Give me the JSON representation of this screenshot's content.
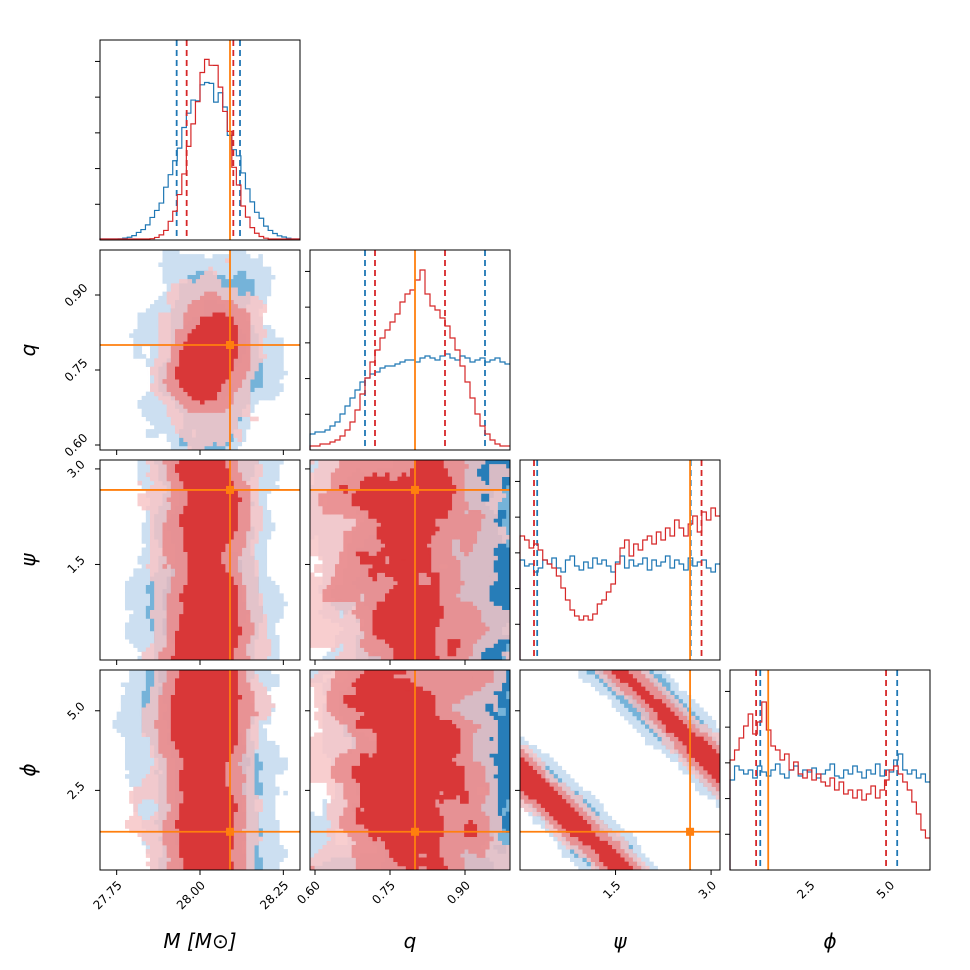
{
  "chart_data": {
    "type": "corner",
    "parameters": [
      {
        "key": "M",
        "label": "M [M⊙]",
        "range": [
          27.7,
          28.3
        ],
        "ticks": [
          27.75,
          28.0,
          28.25
        ],
        "tick_labels": [
          "27.75",
          "28.00",
          "28.25"
        ],
        "truth": 28.09
      },
      {
        "key": "q",
        "label": "q",
        "range": [
          0.59,
          0.99
        ],
        "ticks": [
          0.6,
          0.75,
          0.9
        ],
        "tick_labels": [
          "0.60",
          "0.75",
          "0.90"
        ],
        "truth": 0.8
      },
      {
        "key": "psi",
        "label": "ψ",
        "range": [
          0.0,
          3.14
        ],
        "ticks": [
          1.5,
          3.0
        ],
        "tick_labels": [
          "1.5",
          "3.0"
        ],
        "truth": 2.67
      },
      {
        "key": "phi",
        "label": "ϕ",
        "range": [
          0.0,
          6.28
        ],
        "ticks": [
          2.5,
          5.0
        ],
        "tick_labels": [
          "2.5",
          "5.0"
        ],
        "truth": 1.2
      }
    ],
    "series": [
      {
        "color": "#1f77b4",
        "quantiles": {
          "M": [
            27.93,
            28.12
          ],
          "q": [
            0.7,
            0.94
          ],
          "psi": [
            0.27,
            2.68
          ],
          "phi": [
            0.95,
            5.25
          ]
        },
        "marginals": {
          "M": {
            "center": 28.02,
            "sigma": 0.082,
            "peak": 0.78
          },
          "q": {
            "profile": [
              0.08,
              0.09,
              0.09,
              0.1,
              0.12,
              0.14,
              0.18,
              0.22,
              0.26,
              0.3,
              0.34,
              0.36,
              0.38,
              0.39,
              0.41,
              0.42,
              0.42,
              0.43,
              0.44,
              0.45,
              0.45,
              0.44,
              0.46,
              0.47,
              0.46,
              0.45,
              0.47,
              0.48,
              0.46,
              0.45,
              0.47,
              0.46,
              0.44,
              0.45,
              0.46,
              0.44,
              0.45,
              0.46,
              0.44,
              0.43
            ]
          },
          "psi": {
            "profile": [
              0.5,
              0.47,
              0.48,
              0.44,
              0.46,
              0.5,
              0.48,
              0.51,
              0.46,
              0.44,
              0.5,
              0.52,
              0.47,
              0.45,
              0.49,
              0.46,
              0.51,
              0.48,
              0.5,
              0.47,
              0.44,
              0.49,
              0.52,
              0.46,
              0.5,
              0.47,
              0.48,
              0.51,
              0.45,
              0.5,
              0.47,
              0.49,
              0.52,
              0.46,
              0.5,
              0.48,
              0.45,
              0.51,
              0.47,
              0.49,
              0.5,
              0.46,
              0.44,
              0.48
            ]
          },
          "phi": {
            "profile": [
              0.45,
              0.52,
              0.5,
              0.48,
              0.5,
              0.46,
              0.52,
              0.49,
              0.47,
              0.5,
              0.53,
              0.48,
              0.46,
              0.5,
              0.52,
              0.47,
              0.5,
              0.49,
              0.51,
              0.46,
              0.48,
              0.5,
              0.53,
              0.47,
              0.46,
              0.5,
              0.48,
              0.52,
              0.49,
              0.46,
              0.5,
              0.48,
              0.53,
              0.47,
              0.5,
              0.49,
              0.55,
              0.58,
              0.5,
              0.48,
              0.5,
              0.46,
              0.48,
              0.44
            ]
          }
        }
      },
      {
        "color": "#d62728",
        "quantiles": {
          "M": [
            27.96,
            28.1
          ],
          "q": [
            0.72,
            0.86
          ],
          "psi": [
            0.22,
            2.85
          ],
          "phi": [
            0.82,
            4.9
          ]
        },
        "marginals": {
          "M": {
            "center": 28.03,
            "sigma": 0.055,
            "peak": 0.92
          },
          "q": {
            "profile": [
              0.02,
              0.02,
              0.03,
              0.03,
              0.04,
              0.05,
              0.07,
              0.1,
              0.14,
              0.2,
              0.28,
              0.36,
              0.44,
              0.5,
              0.56,
              0.6,
              0.64,
              0.68,
              0.74,
              0.78,
              0.8,
              0.85,
              0.9,
              0.78,
              0.72,
              0.7,
              0.66,
              0.62,
              0.56,
              0.5,
              0.42,
              0.34,
              0.26,
              0.18,
              0.12,
              0.08,
              0.05,
              0.03,
              0.02,
              0.02
            ]
          },
          "psi": {
            "profile": [
              0.62,
              0.6,
              0.56,
              0.58,
              0.55,
              0.5,
              0.48,
              0.46,
              0.42,
              0.36,
              0.3,
              0.25,
              0.22,
              0.2,
              0.22,
              0.2,
              0.23,
              0.28,
              0.3,
              0.34,
              0.38,
              0.48,
              0.56,
              0.6,
              0.52,
              0.58,
              0.55,
              0.6,
              0.62,
              0.58,
              0.64,
              0.6,
              0.66,
              0.62,
              0.7,
              0.66,
              0.62,
              0.68,
              0.72,
              0.64,
              0.74,
              0.7,
              0.76,
              0.72
            ]
          },
          "phi": {
            "profile": [
              0.55,
              0.6,
              0.66,
              0.72,
              0.78,
              0.68,
              0.74,
              0.84,
              0.7,
              0.62,
              0.6,
              0.55,
              0.58,
              0.5,
              0.54,
              0.48,
              0.46,
              0.5,
              0.45,
              0.48,
              0.44,
              0.42,
              0.46,
              0.4,
              0.44,
              0.38,
              0.4,
              0.36,
              0.4,
              0.35,
              0.38,
              0.42,
              0.36,
              0.4,
              0.45,
              0.5,
              0.52,
              0.48,
              0.44,
              0.4,
              0.34,
              0.28,
              0.2,
              0.16
            ]
          }
        }
      }
    ],
    "truth_color": "#ff7f0e"
  }
}
